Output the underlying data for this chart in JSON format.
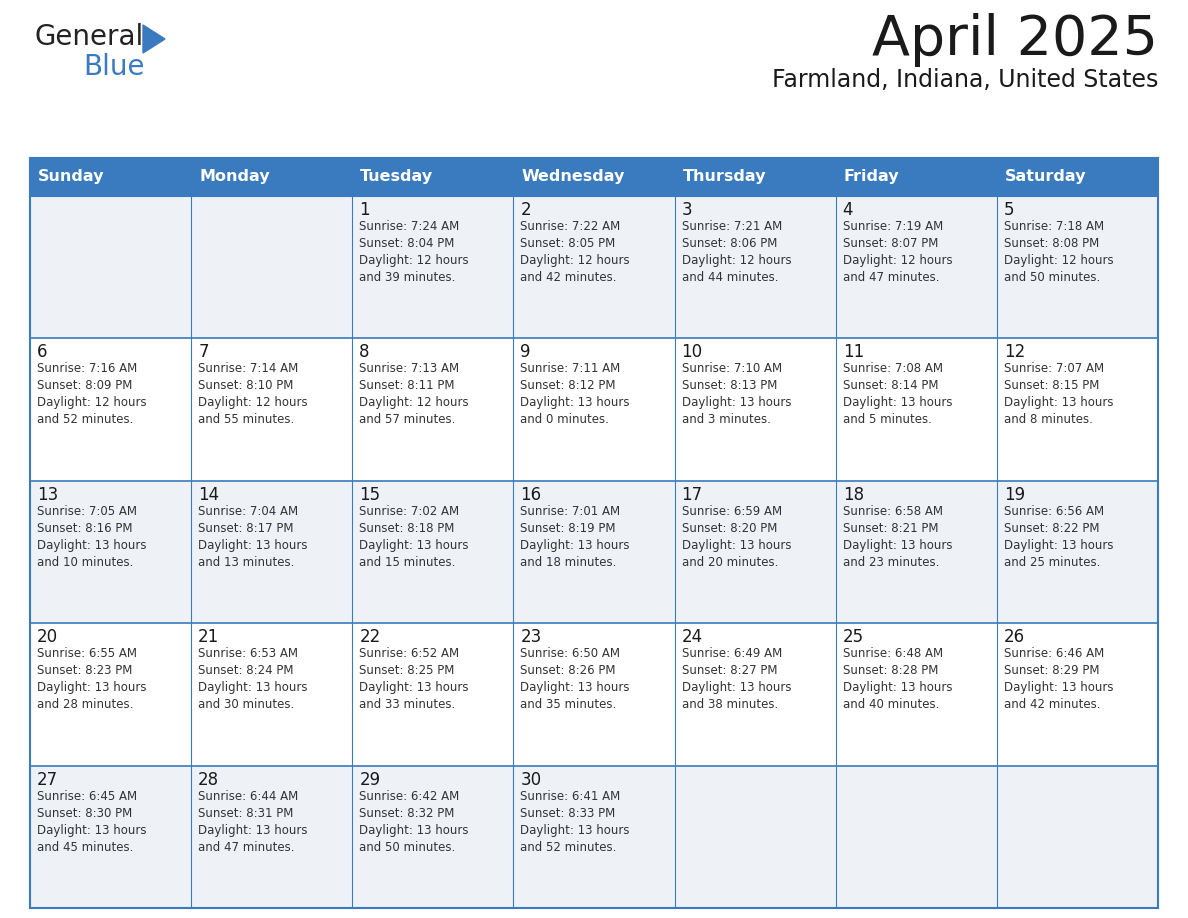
{
  "title": "April 2025",
  "subtitle": "Farmland, Indiana, United States",
  "header_bg": "#3a7abf",
  "header_text_color": "#ffffff",
  "cell_bg_odd": "#eef2f7",
  "cell_bg_even": "#ffffff",
  "border_color": "#3a7abf",
  "text_color": "#333333",
  "days_of_week": [
    "Sunday",
    "Monday",
    "Tuesday",
    "Wednesday",
    "Thursday",
    "Friday",
    "Saturday"
  ],
  "weeks": [
    [
      {
        "day": "",
        "lines": []
      },
      {
        "day": "",
        "lines": []
      },
      {
        "day": "1",
        "lines": [
          "Sunrise: 7:24 AM",
          "Sunset: 8:04 PM",
          "Daylight: 12 hours",
          "and 39 minutes."
        ]
      },
      {
        "day": "2",
        "lines": [
          "Sunrise: 7:22 AM",
          "Sunset: 8:05 PM",
          "Daylight: 12 hours",
          "and 42 minutes."
        ]
      },
      {
        "day": "3",
        "lines": [
          "Sunrise: 7:21 AM",
          "Sunset: 8:06 PM",
          "Daylight: 12 hours",
          "and 44 minutes."
        ]
      },
      {
        "day": "4",
        "lines": [
          "Sunrise: 7:19 AM",
          "Sunset: 8:07 PM",
          "Daylight: 12 hours",
          "and 47 minutes."
        ]
      },
      {
        "day": "5",
        "lines": [
          "Sunrise: 7:18 AM",
          "Sunset: 8:08 PM",
          "Daylight: 12 hours",
          "and 50 minutes."
        ]
      }
    ],
    [
      {
        "day": "6",
        "lines": [
          "Sunrise: 7:16 AM",
          "Sunset: 8:09 PM",
          "Daylight: 12 hours",
          "and 52 minutes."
        ]
      },
      {
        "day": "7",
        "lines": [
          "Sunrise: 7:14 AM",
          "Sunset: 8:10 PM",
          "Daylight: 12 hours",
          "and 55 minutes."
        ]
      },
      {
        "day": "8",
        "lines": [
          "Sunrise: 7:13 AM",
          "Sunset: 8:11 PM",
          "Daylight: 12 hours",
          "and 57 minutes."
        ]
      },
      {
        "day": "9",
        "lines": [
          "Sunrise: 7:11 AM",
          "Sunset: 8:12 PM",
          "Daylight: 13 hours",
          "and 0 minutes."
        ]
      },
      {
        "day": "10",
        "lines": [
          "Sunrise: 7:10 AM",
          "Sunset: 8:13 PM",
          "Daylight: 13 hours",
          "and 3 minutes."
        ]
      },
      {
        "day": "11",
        "lines": [
          "Sunrise: 7:08 AM",
          "Sunset: 8:14 PM",
          "Daylight: 13 hours",
          "and 5 minutes."
        ]
      },
      {
        "day": "12",
        "lines": [
          "Sunrise: 7:07 AM",
          "Sunset: 8:15 PM",
          "Daylight: 13 hours",
          "and 8 minutes."
        ]
      }
    ],
    [
      {
        "day": "13",
        "lines": [
          "Sunrise: 7:05 AM",
          "Sunset: 8:16 PM",
          "Daylight: 13 hours",
          "and 10 minutes."
        ]
      },
      {
        "day": "14",
        "lines": [
          "Sunrise: 7:04 AM",
          "Sunset: 8:17 PM",
          "Daylight: 13 hours",
          "and 13 minutes."
        ]
      },
      {
        "day": "15",
        "lines": [
          "Sunrise: 7:02 AM",
          "Sunset: 8:18 PM",
          "Daylight: 13 hours",
          "and 15 minutes."
        ]
      },
      {
        "day": "16",
        "lines": [
          "Sunrise: 7:01 AM",
          "Sunset: 8:19 PM",
          "Daylight: 13 hours",
          "and 18 minutes."
        ]
      },
      {
        "day": "17",
        "lines": [
          "Sunrise: 6:59 AM",
          "Sunset: 8:20 PM",
          "Daylight: 13 hours",
          "and 20 minutes."
        ]
      },
      {
        "day": "18",
        "lines": [
          "Sunrise: 6:58 AM",
          "Sunset: 8:21 PM",
          "Daylight: 13 hours",
          "and 23 minutes."
        ]
      },
      {
        "day": "19",
        "lines": [
          "Sunrise: 6:56 AM",
          "Sunset: 8:22 PM",
          "Daylight: 13 hours",
          "and 25 minutes."
        ]
      }
    ],
    [
      {
        "day": "20",
        "lines": [
          "Sunrise: 6:55 AM",
          "Sunset: 8:23 PM",
          "Daylight: 13 hours",
          "and 28 minutes."
        ]
      },
      {
        "day": "21",
        "lines": [
          "Sunrise: 6:53 AM",
          "Sunset: 8:24 PM",
          "Daylight: 13 hours",
          "and 30 minutes."
        ]
      },
      {
        "day": "22",
        "lines": [
          "Sunrise: 6:52 AM",
          "Sunset: 8:25 PM",
          "Daylight: 13 hours",
          "and 33 minutes."
        ]
      },
      {
        "day": "23",
        "lines": [
          "Sunrise: 6:50 AM",
          "Sunset: 8:26 PM",
          "Daylight: 13 hours",
          "and 35 minutes."
        ]
      },
      {
        "day": "24",
        "lines": [
          "Sunrise: 6:49 AM",
          "Sunset: 8:27 PM",
          "Daylight: 13 hours",
          "and 38 minutes."
        ]
      },
      {
        "day": "25",
        "lines": [
          "Sunrise: 6:48 AM",
          "Sunset: 8:28 PM",
          "Daylight: 13 hours",
          "and 40 minutes."
        ]
      },
      {
        "day": "26",
        "lines": [
          "Sunrise: 6:46 AM",
          "Sunset: 8:29 PM",
          "Daylight: 13 hours",
          "and 42 minutes."
        ]
      }
    ],
    [
      {
        "day": "27",
        "lines": [
          "Sunrise: 6:45 AM",
          "Sunset: 8:30 PM",
          "Daylight: 13 hours",
          "and 45 minutes."
        ]
      },
      {
        "day": "28",
        "lines": [
          "Sunrise: 6:44 AM",
          "Sunset: 8:31 PM",
          "Daylight: 13 hours",
          "and 47 minutes."
        ]
      },
      {
        "day": "29",
        "lines": [
          "Sunrise: 6:42 AM",
          "Sunset: 8:32 PM",
          "Daylight: 13 hours",
          "and 50 minutes."
        ]
      },
      {
        "day": "30",
        "lines": [
          "Sunrise: 6:41 AM",
          "Sunset: 8:33 PM",
          "Daylight: 13 hours",
          "and 52 minutes."
        ]
      },
      {
        "day": "",
        "lines": []
      },
      {
        "day": "",
        "lines": []
      },
      {
        "day": "",
        "lines": []
      }
    ]
  ],
  "logo_triangle_color": "#3a7abf"
}
